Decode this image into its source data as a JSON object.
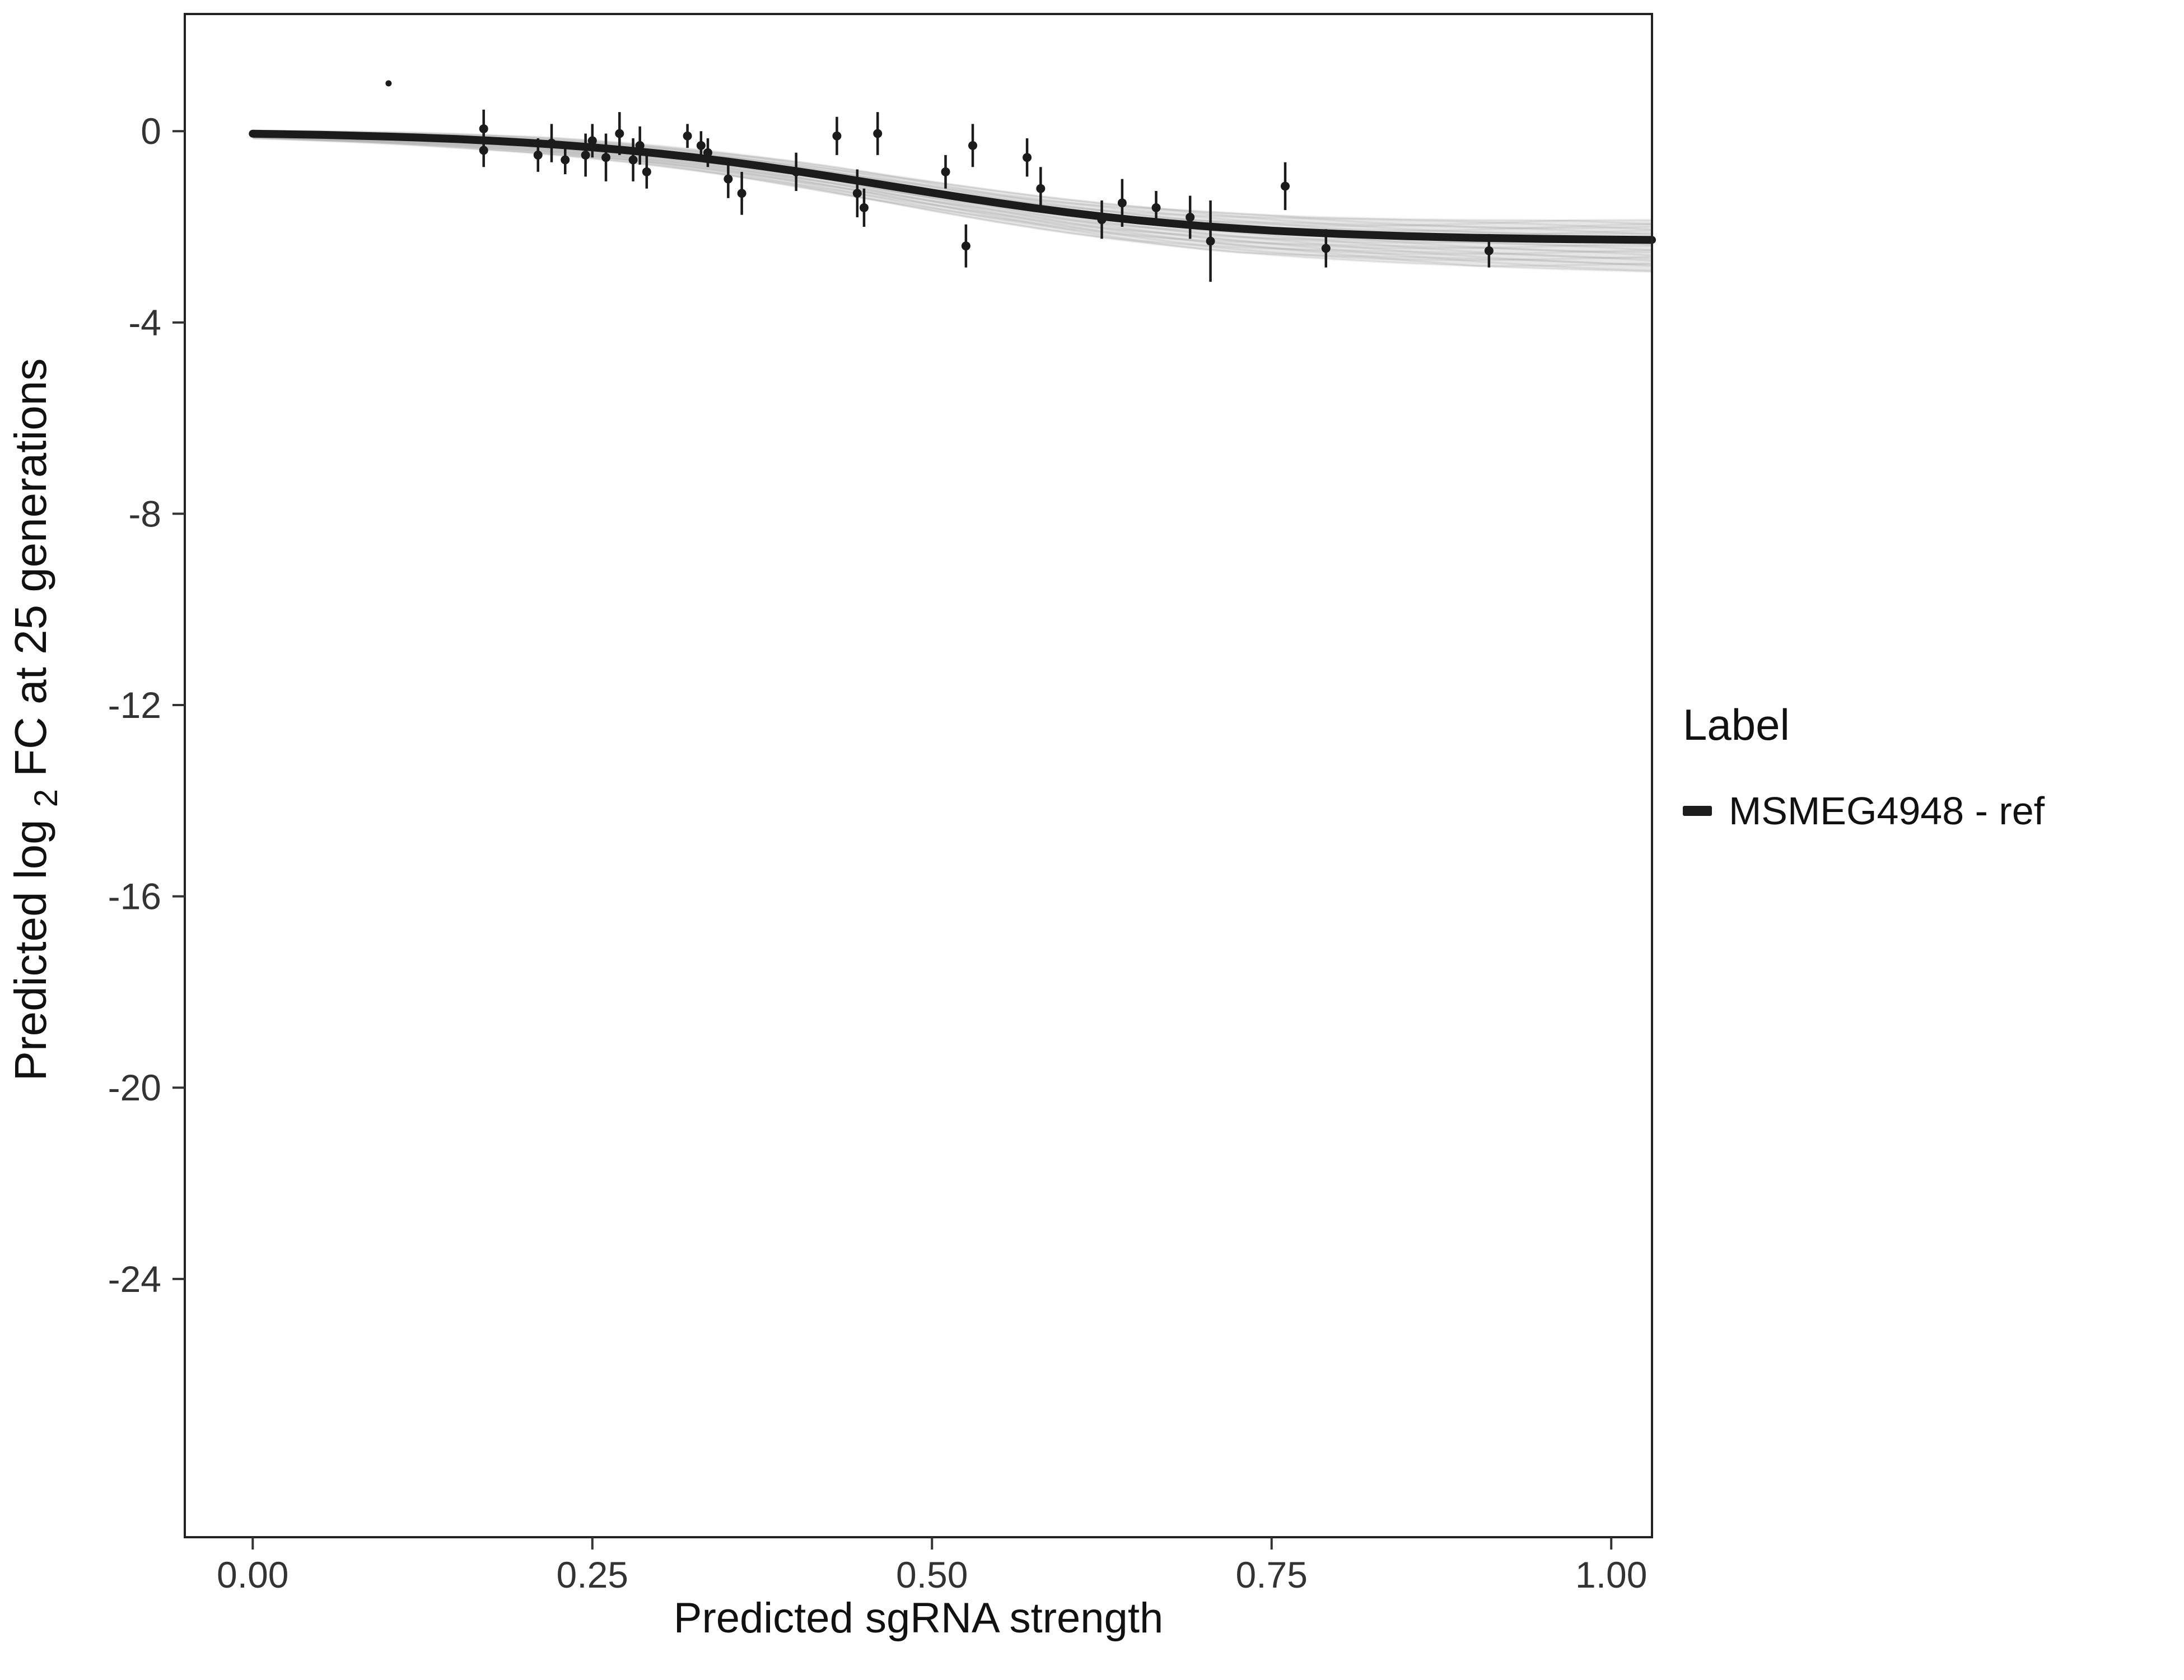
{
  "legend": {
    "title": "Label",
    "items": [
      {
        "label": "MSMEG4948 - ref",
        "color": "#1c1c1c",
        "symbol": "thick-line-key"
      }
    ]
  },
  "chart_data": {
    "type": "line",
    "subtype": "sigmoid fit with uncertainty band and points with error bars",
    "title": "",
    "xlabel": "Predicted sgRNA strength",
    "ylabel": "Predicted log2 FC at 25 generations",
    "ylabel_parts": {
      "pre": "Predicted  log",
      "sub": "2",
      "post": " FC at 25 generations"
    },
    "xlim": [
      -0.05,
      1.03
    ],
    "ylim": [
      -29.4,
      2.45
    ],
    "grid": "off",
    "legend_position": "right",
    "xticks": {
      "values": [
        0,
        0.25,
        0.5,
        0.75,
        1.0
      ],
      "labels": [
        "0.00",
        "0.25",
        "0.50",
        "0.75",
        "1.00"
      ]
    },
    "yticks": {
      "values": [
        0,
        -4,
        -8,
        -12,
        -16,
        -20,
        -24
      ],
      "labels": [
        "0",
        "-4",
        "-8",
        "-12",
        "-16",
        "-20",
        "-24"
      ]
    },
    "colors": {
      "fit": "#1b1b1b",
      "points": "#1b1b1b",
      "band_fill": "#c8c8c8",
      "ensemble": "#909090",
      "panel_border": "#222222",
      "axis_text": "#333333",
      "axis_title": "#111111"
    },
    "fit": {
      "x": [
        0,
        0.025,
        0.05,
        0.075,
        0.1,
        0.125,
        0.15,
        0.175,
        0.2,
        0.225,
        0.25,
        0.275,
        0.3,
        0.325,
        0.35,
        0.375,
        0.4,
        0.425,
        0.45,
        0.475,
        0.5,
        0.525,
        0.55,
        0.575,
        0.6,
        0.625,
        0.65,
        0.675,
        0.7,
        0.725,
        0.75,
        0.775,
        0.8,
        0.825,
        0.85,
        0.875,
        0.9,
        0.925,
        0.95,
        0.975,
        1.0,
        1.03
      ],
      "y": [
        -0.052,
        -0.064,
        -0.077,
        -0.094,
        -0.113,
        -0.137,
        -0.165,
        -0.199,
        -0.238,
        -0.284,
        -0.338,
        -0.399,
        -0.47,
        -0.549,
        -0.637,
        -0.733,
        -0.836,
        -0.945,
        -1.058,
        -1.173,
        -1.287,
        -1.399,
        -1.506,
        -1.606,
        -1.699,
        -1.784,
        -1.86,
        -1.926,
        -1.985,
        -2.035,
        -2.079,
        -2.116,
        -2.147,
        -2.173,
        -2.195,
        -2.213,
        -2.229,
        -2.241,
        -2.252,
        -2.26,
        -2.267,
        -2.274
      ],
      "band_hi": [
        0.008,
        0.005,
        0.0,
        -0.008,
        -0.018,
        -0.033,
        -0.053,
        -0.078,
        -0.108,
        -0.145,
        -0.19,
        -0.243,
        -0.305,
        -0.375,
        -0.454,
        -0.542,
        -0.636,
        -0.736,
        -0.841,
        -0.947,
        -1.052,
        -1.155,
        -1.254,
        -1.345,
        -1.429,
        -1.505,
        -1.572,
        -1.63,
        -1.68,
        -1.722,
        -1.756,
        -1.784,
        -1.807,
        -1.824,
        -1.838,
        -1.847,
        -1.854,
        -1.857,
        -1.859,
        -1.859,
        -1.857,
        -1.854
      ],
      "band_lo": [
        -0.152,
        -0.178,
        -0.205,
        -0.235,
        -0.268,
        -0.306,
        -0.348,
        -0.395,
        -0.448,
        -0.508,
        -0.576,
        -0.65,
        -0.735,
        -0.828,
        -0.93,
        -1.039,
        -1.156,
        -1.279,
        -1.406,
        -1.534,
        -1.662,
        -1.788,
        -1.909,
        -2.022,
        -2.129,
        -2.228,
        -2.318,
        -2.397,
        -2.47,
        -2.534,
        -2.591,
        -2.642,
        -2.687,
        -2.727,
        -2.763,
        -2.794,
        -2.824,
        -2.85,
        -2.875,
        -2.896,
        -2.917,
        -2.941
      ]
    },
    "points": {
      "columns": [
        "x",
        "y",
        "yerr"
      ],
      "rows": [
        [
          0.1,
          1.0,
          0
        ],
        [
          0.17,
          0.05,
          0.4
        ],
        [
          0.17,
          -0.4,
          0.35
        ],
        [
          0.21,
          -0.5,
          0.35
        ],
        [
          0.22,
          -0.25,
          0.4
        ],
        [
          0.23,
          -0.6,
          0.3
        ],
        [
          0.245,
          -0.5,
          0.45
        ],
        [
          0.25,
          -0.2,
          0.35
        ],
        [
          0.26,
          -0.55,
          0.5
        ],
        [
          0.27,
          -0.05,
          0.45
        ],
        [
          0.28,
          -0.6,
          0.45
        ],
        [
          0.285,
          -0.3,
          0.4
        ],
        [
          0.29,
          -0.85,
          0.35
        ],
        [
          0.32,
          -0.1,
          0.25
        ],
        [
          0.33,
          -0.3,
          0.3
        ],
        [
          0.335,
          -0.45,
          0.3
        ],
        [
          0.35,
          -1.0,
          0.4
        ],
        [
          0.36,
          -1.3,
          0.45
        ],
        [
          0.4,
          -0.85,
          0.4
        ],
        [
          0.43,
          -0.1,
          0.4
        ],
        [
          0.445,
          -1.3,
          0.5
        ],
        [
          0.45,
          -1.6,
          0.4
        ],
        [
          0.46,
          -0.05,
          0.45
        ],
        [
          0.51,
          -0.85,
          0.35
        ],
        [
          0.525,
          -2.4,
          0.45
        ],
        [
          0.53,
          -0.3,
          0.45
        ],
        [
          0.57,
          -0.55,
          0.4
        ],
        [
          0.58,
          -1.2,
          0.45
        ],
        [
          0.625,
          -1.85,
          0.4
        ],
        [
          0.64,
          -1.5,
          0.5
        ],
        [
          0.665,
          -1.6,
          0.35
        ],
        [
          0.69,
          -1.8,
          0.45
        ],
        [
          0.705,
          -2.3,
          0.85
        ],
        [
          0.76,
          -1.15,
          0.5
        ],
        [
          0.79,
          -2.45,
          0.4
        ],
        [
          0.91,
          -2.5,
          0.35
        ]
      ]
    }
  }
}
